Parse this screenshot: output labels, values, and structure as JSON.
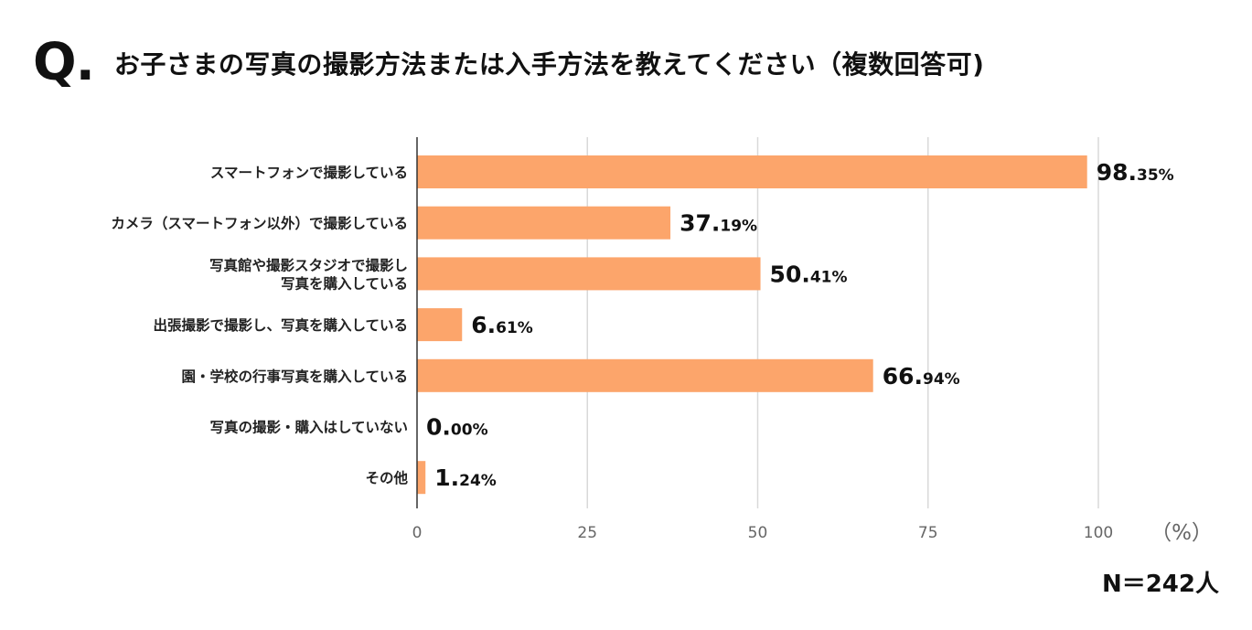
{
  "question_mark": "Q.",
  "title": "お子さまの写真の撮影方法または入手方法を教えてください（複数回答可)",
  "sample_size": "N＝242人",
  "axis_unit": "（%）",
  "colors": {
    "bar": "#fca56b",
    "grid": "#d9d9d9",
    "axis": "#333333"
  },
  "chart_data": {
    "type": "bar",
    "orientation": "horizontal",
    "categories": [
      [
        "スマートフォンで撮影している"
      ],
      [
        "カメラ（スマートフォン以外）で撮影している"
      ],
      [
        "写真館や撮影スタジオで撮影し",
        "写真を購入している"
      ],
      [
        "出張撮影で撮影し、写真を購入している"
      ],
      [
        "園・学校の行事写真を購入している"
      ],
      [
        "写真の撮影・購入はしていない"
      ],
      [
        "その他"
      ]
    ],
    "values": [
      98.35,
      37.19,
      50.41,
      6.61,
      66.94,
      0.0,
      1.24
    ],
    "value_labels": [
      {
        "big": "98.",
        "small": "35%"
      },
      {
        "big": "37.",
        "small": "19%"
      },
      {
        "big": "50.",
        "small": "41%"
      },
      {
        "big": "6.",
        "small": "61%"
      },
      {
        "big": "66.",
        "small": "94%"
      },
      {
        "big": "0.",
        "small": "00%"
      },
      {
        "big": "1.",
        "small": "24%"
      }
    ],
    "xlim": [
      0,
      100
    ],
    "xticks": [
      0,
      25,
      50,
      75,
      100
    ],
    "grid": true
  }
}
